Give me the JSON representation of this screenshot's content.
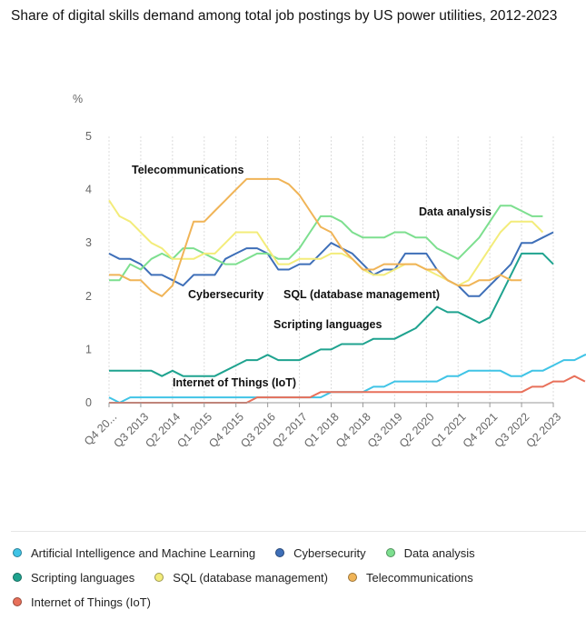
{
  "chart_data": {
    "type": "line",
    "title": "Share of digital skills demand among total job postings by US power utilities, 2012-2023",
    "ylabel": "%",
    "xlabel": "",
    "ylim": [
      0,
      5
    ],
    "yticks": [
      0,
      1,
      2,
      3,
      4,
      5
    ],
    "grid": "vertical",
    "legend_position": "bottom",
    "x_tick_labels": [
      "Q4 20...",
      "Q3 2013",
      "Q2 2014",
      "Q1 2015",
      "Q4 2015",
      "Q3 2016",
      "Q2 2017",
      "Q1 2018",
      "Q4 2018",
      "Q3 2019",
      "Q2 2020",
      "Q1 2021",
      "Q4 2021",
      "Q3 2022",
      "Q2 2023"
    ],
    "series": [
      {
        "name": "Artificial Intelligence and Machine Learning",
        "color": "#40c4e6",
        "values": [
          0.1,
          0,
          0.1,
          0.1,
          0.1,
          0.1,
          0.1,
          0.1,
          0.1,
          0.1,
          0.1,
          0.1,
          0.1,
          0.1,
          0.1,
          0.1,
          0.1,
          0.1,
          0.1,
          0.1,
          0.1,
          0.2,
          0.2,
          0.2,
          0.2,
          0.3,
          0.3,
          0.4,
          0.4,
          0.4,
          0.4,
          0.4,
          0.5,
          0.5,
          0.6,
          0.6,
          0.6,
          0.6,
          0.5,
          0.5,
          0.6,
          0.6,
          0.7,
          0.8,
          0.8,
          0.9,
          0.9,
          0.8,
          0.7
        ]
      },
      {
        "name": "Cybersecurity",
        "color": "#3e6fb8",
        "values": [
          2.8,
          2.7,
          2.7,
          2.6,
          2.4,
          2.4,
          2.3,
          2.2,
          2.4,
          2.4,
          2.4,
          2.7,
          2.8,
          2.9,
          2.9,
          2.8,
          2.5,
          2.5,
          2.6,
          2.6,
          2.8,
          3,
          2.9,
          2.8,
          2.6,
          2.4,
          2.5,
          2.5,
          2.8,
          2.8,
          2.8,
          2.5,
          2.3,
          2.2,
          2,
          2,
          2.2,
          2.4,
          2.6,
          3,
          3,
          3.1,
          3.2
        ]
      },
      {
        "name": "Data analysis",
        "color": "#7ddf8f",
        "values": [
          2.3,
          2.3,
          2.6,
          2.5,
          2.7,
          2.8,
          2.7,
          2.9,
          2.9,
          2.8,
          2.7,
          2.6,
          2.6,
          2.7,
          2.8,
          2.8,
          2.7,
          2.7,
          2.9,
          3.2,
          3.5,
          3.5,
          3.4,
          3.2,
          3.1,
          3.1,
          3.1,
          3.2,
          3.2,
          3.1,
          3.1,
          2.9,
          2.8,
          2.7,
          2.9,
          3.1,
          3.4,
          3.7,
          3.7,
          3.6,
          3.5,
          3.5
        ]
      },
      {
        "name": "Scripting languages",
        "color": "#1fa38f",
        "values": [
          0.6,
          0.6,
          0.6,
          0.6,
          0.6,
          0.5,
          0.6,
          0.5,
          0.5,
          0.5,
          0.5,
          0.6,
          0.7,
          0.8,
          0.8,
          0.9,
          0.8,
          0.8,
          0.8,
          0.9,
          1,
          1,
          1.1,
          1.1,
          1.1,
          1.2,
          1.2,
          1.2,
          1.3,
          1.4,
          1.6,
          1.8,
          1.7,
          1.7,
          1.6,
          1.5,
          1.6,
          2,
          2.4,
          2.8,
          2.8,
          2.8,
          2.6
        ]
      },
      {
        "name": "SQL (database management)",
        "color": "#f3ec7a",
        "values": [
          3.8,
          3.5,
          3.4,
          3.2,
          3,
          2.9,
          2.7,
          2.7,
          2.7,
          2.8,
          2.8,
          3,
          3.2,
          3.2,
          3.2,
          2.9,
          2.6,
          2.6,
          2.7,
          2.7,
          2.7,
          2.8,
          2.8,
          2.7,
          2.5,
          2.4,
          2.4,
          2.5,
          2.6,
          2.6,
          2.5,
          2.4,
          2.3,
          2.2,
          2.3,
          2.6,
          2.9,
          3.2,
          3.4,
          3.4,
          3.4,
          3.2
        ]
      },
      {
        "name": "Telecommunications",
        "color": "#f0b457",
        "values": [
          2.4,
          2.4,
          2.3,
          2.3,
          2.1,
          2,
          2.2,
          2.8,
          3.4,
          3.4,
          3.6,
          3.8,
          4,
          4.2,
          4.2,
          4.2,
          4.2,
          4.1,
          3.9,
          3.6,
          3.3,
          3.2,
          2.9,
          2.7,
          2.5,
          2.5,
          2.6,
          2.6,
          2.6,
          2.6,
          2.5,
          2.5,
          2.3,
          2.2,
          2.2,
          2.3,
          2.3,
          2.4,
          2.3,
          2.3
        ]
      },
      {
        "name": "Internet of Things (IoT)",
        "color": "#e8705a",
        "values": [
          0,
          0,
          0,
          0,
          0,
          0,
          0,
          0,
          0,
          0,
          0,
          0,
          0,
          0,
          0.1,
          0.1,
          0.1,
          0.1,
          0.1,
          0.1,
          0.2,
          0.2,
          0.2,
          0.2,
          0.2,
          0.2,
          0.2,
          0.2,
          0.2,
          0.2,
          0.2,
          0.2,
          0.2,
          0.2,
          0.2,
          0.2,
          0.2,
          0.2,
          0.2,
          0.2,
          0.3,
          0.3,
          0.4,
          0.4,
          0.5,
          0.4
        ]
      }
    ],
    "annotations": [
      {
        "text": "Telecommunications",
        "series": "Telecommunications"
      },
      {
        "text": "Data analysis",
        "series": "Data analysis"
      },
      {
        "text": "Cybersecurity",
        "series": "Cybersecurity"
      },
      {
        "text": "SQL (database management)",
        "series": "SQL (database management)"
      },
      {
        "text": "Scripting languages",
        "series": "Scripting languages"
      },
      {
        "text": "Internet of Things (IoT)",
        "series": "Internet of Things (IoT)"
      }
    ]
  }
}
